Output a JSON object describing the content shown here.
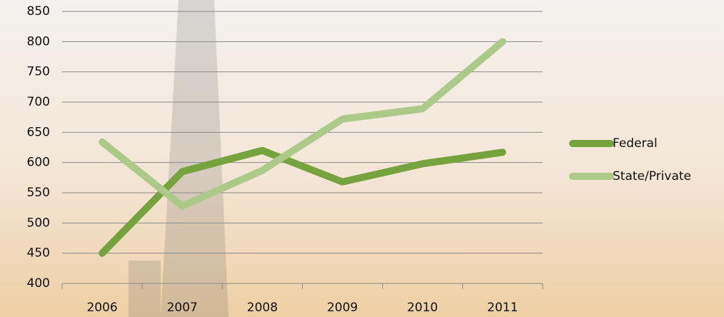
{
  "chart_data": {
    "type": "line",
    "categories": [
      "2006",
      "2007",
      "2008",
      "2009",
      "2010",
      "2011"
    ],
    "series": [
      {
        "name": "Federal",
        "color": "#77a33e",
        "values": [
          450,
          585,
          620,
          568,
          598,
          617
        ]
      },
      {
        "name": "State/Private",
        "color": "#adc98a",
        "values": [
          634,
          528,
          587,
          672,
          689,
          800
        ]
      }
    ],
    "ylim": [
      400,
      850
    ],
    "yticks": [
      400,
      450,
      500,
      550,
      600,
      650,
      700,
      750,
      800,
      850
    ],
    "grid": true,
    "legend": "right"
  }
}
